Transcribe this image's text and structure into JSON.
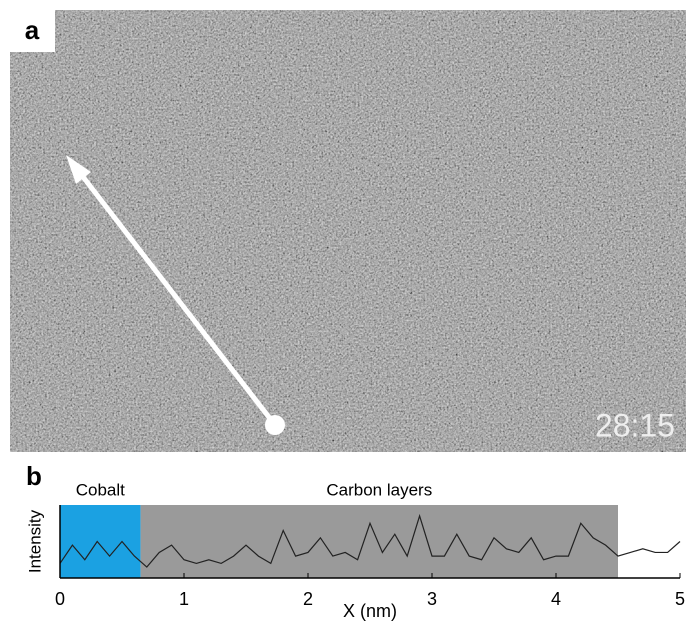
{
  "figure": {
    "panel_labels": [
      "a",
      "b"
    ],
    "timestamp": "28:15"
  },
  "chart_data": {
    "type": "line",
    "x_label": "X (nm)",
    "y_label": "Intensity",
    "regions": [
      {
        "label": "Cobalt",
        "x": [
          0,
          0.65
        ],
        "color": "#1ba1e2"
      },
      {
        "label": "Carbon layers",
        "x": [
          0.65,
          4.5
        ],
        "color": "#9a9a9a"
      }
    ],
    "x": [
      0,
      0.1,
      0.2,
      0.3,
      0.4,
      0.5,
      0.6,
      0.7,
      0.8,
      0.9,
      1.0,
      1.1,
      1.2,
      1.3,
      1.4,
      1.5,
      1.6,
      1.7,
      1.8,
      1.9,
      2.0,
      2.1,
      2.2,
      2.3,
      2.4,
      2.5,
      2.6,
      2.7,
      2.8,
      2.9,
      3.0,
      3.1,
      3.2,
      3.3,
      3.4,
      3.5,
      3.6,
      3.7,
      3.8,
      3.9,
      4.0,
      4.1,
      4.2,
      4.3,
      4.4,
      4.5,
      4.6,
      4.7,
      4.8,
      4.9,
      5.0
    ],
    "series": [
      {
        "color": "#222222",
        "values": [
          0.2,
          0.45,
          0.25,
          0.5,
          0.3,
          0.5,
          0.3,
          0.15,
          0.35,
          0.45,
          0.25,
          0.2,
          0.25,
          0.2,
          0.3,
          0.45,
          0.3,
          0.2,
          0.65,
          0.3,
          0.35,
          0.55,
          0.3,
          0.35,
          0.25,
          0.75,
          0.35,
          0.6,
          0.3,
          0.85,
          0.3,
          0.3,
          0.6,
          0.3,
          0.25,
          0.55,
          0.4,
          0.35,
          0.55,
          0.25,
          0.3,
          0.3,
          0.75,
          0.55,
          0.45,
          0.3,
          0.35,
          0.4,
          0.35,
          0.35,
          0.5
        ]
      }
    ],
    "xlim": [
      0,
      5
    ],
    "ylim": [
      0,
      1
    ],
    "xticks": [
      0,
      1,
      2,
      3,
      4,
      5
    ]
  }
}
